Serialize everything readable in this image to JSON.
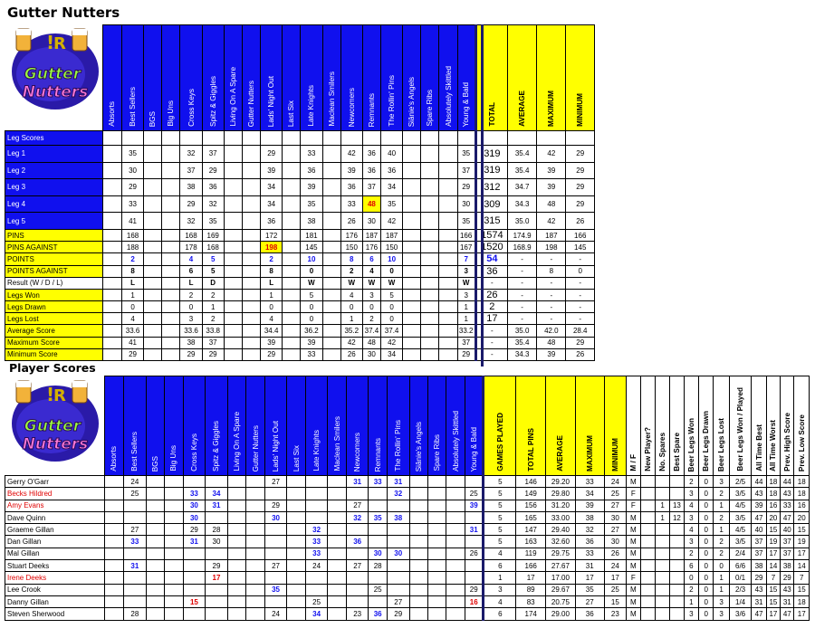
{
  "title": "Gutter Nutters",
  "subtitle": "Player Scores",
  "logo_text": "Gutter Nutters",
  "teams": [
    "Absorts",
    "Best Sellers",
    "BGS",
    "Big Uns",
    "Cross Keys",
    "Spitz & Giggles",
    "Living On A Spare",
    "Gutter Nutters",
    "Lads' Night Out",
    "Last Six",
    "Late Knights",
    "Maclean Smilers",
    "Newcomers",
    "Remnants",
    "The Rollin' Pins",
    "Siânie's Angels",
    "Spare Ribs",
    "Absolutely Skittled",
    "Young & Bald"
  ],
  "summary_headers": [
    "TOTAL",
    "AVERAGE",
    "MAXIMUM",
    "MINIMUM"
  ],
  "leg_rows": [
    {
      "label": "Leg Scores",
      "style": "blue",
      "cells": [
        "",
        "",
        "",
        "",
        "",
        "",
        "",
        "",
        "",
        "",
        "",
        "",
        "",
        "",
        "",
        "",
        "",
        "",
        ""
      ],
      "summary": [
        "",
        "",
        "",
        ""
      ]
    },
    {
      "label": "Leg 1",
      "style": "blue",
      "cells": [
        "",
        "35",
        "",
        "",
        "32",
        "37",
        "",
        "",
        "29",
        "",
        "33",
        "",
        "42",
        "36",
        "40",
        "",
        "",
        "",
        "35"
      ],
      "summary": [
        "319",
        "35.4",
        "42",
        "29"
      ]
    },
    {
      "label": "Leg 2",
      "style": "blue",
      "cells": [
        "",
        "30",
        "",
        "",
        "37",
        "29",
        "",
        "",
        "39",
        "",
        "36",
        "",
        "39",
        "36",
        "36",
        "",
        "",
        "",
        "37"
      ],
      "summary": [
        "319",
        "35.4",
        "39",
        "29"
      ]
    },
    {
      "label": "Leg 3",
      "style": "blue",
      "cells": [
        "",
        "29",
        "",
        "",
        "38",
        "36",
        "",
        "",
        "34",
        "",
        "39",
        "",
        "36",
        "37",
        "34",
        "",
        "",
        "",
        "29"
      ],
      "summary": [
        "312",
        "34.7",
        "39",
        "29"
      ]
    },
    {
      "label": "Leg 4",
      "style": "blue",
      "cells": [
        "",
        "33",
        "",
        "",
        "29",
        "32",
        "",
        "",
        "34",
        "",
        "35",
        "",
        "33",
        "48",
        "35",
        "",
        "",
        "",
        "30"
      ],
      "summary": [
        "309",
        "34.3",
        "48",
        "29"
      ]
    },
    {
      "label": "Leg 5",
      "style": "blue",
      "cells": [
        "",
        "41",
        "",
        "",
        "32",
        "35",
        "",
        "",
        "36",
        "",
        "38",
        "",
        "26",
        "30",
        "42",
        "",
        "",
        "",
        "35"
      ],
      "summary": [
        "315",
        "35.0",
        "42",
        "26"
      ]
    },
    {
      "label": "PINS",
      "style": "yel",
      "cells": [
        "",
        "168",
        "",
        "",
        "168",
        "169",
        "",
        "",
        "172",
        "",
        "181",
        "",
        "176",
        "187",
        "187",
        "",
        "",
        "",
        "166"
      ],
      "summary": [
        "1574",
        "174.9",
        "187",
        "166"
      ]
    },
    {
      "label": "PINS AGAINST",
      "style": "yel",
      "cells": [
        "",
        "188",
        "",
        "",
        "178",
        "168",
        "",
        "",
        "198",
        "",
        "145",
        "",
        "150",
        "176",
        "150",
        "",
        "",
        "",
        "167"
      ],
      "summary": [
        "1520",
        "168.9",
        "198",
        "145"
      ]
    },
    {
      "label": "POINTS",
      "style": "yel",
      "cls": "cb",
      "cells": [
        "",
        "2",
        "",
        "",
        "4",
        "5",
        "",
        "",
        "2",
        "",
        "10",
        "",
        "8",
        "6",
        "10",
        "",
        "",
        "",
        "7"
      ],
      "summary": [
        "54",
        "-",
        "-",
        "-"
      ]
    },
    {
      "label": "POINTS AGAINST",
      "style": "yel",
      "cls": "ck",
      "cells": [
        "",
        "8",
        "",
        "",
        "6",
        "5",
        "",
        "",
        "8",
        "",
        "0",
        "",
        "2",
        "4",
        "0",
        "",
        "",
        "",
        "3"
      ],
      "summary": [
        "36",
        "-",
        "8",
        "0"
      ]
    },
    {
      "label": "Result (W / D / L)",
      "style": "white",
      "cls": "ck",
      "cells": [
        "",
        "L",
        "",
        "",
        "L",
        "D",
        "",
        "",
        "L",
        "",
        "W",
        "",
        "W",
        "W",
        "W",
        "",
        "",
        "",
        "W"
      ],
      "summary": [
        "-",
        "-",
        "-",
        "-"
      ]
    },
    {
      "label": "Legs Won",
      "style": "yel",
      "cells": [
        "",
        "1",
        "",
        "",
        "2",
        "2",
        "",
        "",
        "1",
        "",
        "5",
        "",
        "4",
        "3",
        "5",
        "",
        "",
        "",
        "3"
      ],
      "summary": [
        "26",
        "-",
        "-",
        "-"
      ]
    },
    {
      "label": "Legs Drawn",
      "style": "yel",
      "cells": [
        "",
        "0",
        "",
        "",
        "0",
        "1",
        "",
        "",
        "0",
        "",
        "0",
        "",
        "0",
        "0",
        "0",
        "",
        "",
        "",
        "1"
      ],
      "summary": [
        "2",
        "-",
        "-",
        "-"
      ]
    },
    {
      "label": "Legs Lost",
      "style": "yel",
      "cells": [
        "",
        "4",
        "",
        "",
        "3",
        "2",
        "",
        "",
        "4",
        "",
        "0",
        "",
        "1",
        "2",
        "0",
        "",
        "",
        "",
        "1"
      ],
      "summary": [
        "17",
        "-",
        "-",
        "-"
      ]
    },
    {
      "label": "Average Score",
      "style": "yel",
      "cells": [
        "",
        "33.6",
        "",
        "",
        "33.6",
        "33.8",
        "",
        "",
        "34.4",
        "",
        "36.2",
        "",
        "35.2",
        "37.4",
        "37.4",
        "",
        "",
        "",
        "33.2"
      ],
      "summary": [
        "-",
        "35.0",
        "42.0",
        "28.4"
      ]
    },
    {
      "label": "Maximum Score",
      "style": "yel",
      "cells": [
        "",
        "41",
        "",
        "",
        "38",
        "37",
        "",
        "",
        "39",
        "",
        "39",
        "",
        "42",
        "48",
        "42",
        "",
        "",
        "",
        "37"
      ],
      "summary": [
        "-",
        "35.4",
        "48",
        "29"
      ]
    },
    {
      "label": "Minimum Score",
      "style": "yel",
      "cells": [
        "",
        "29",
        "",
        "",
        "29",
        "29",
        "",
        "",
        "29",
        "",
        "33",
        "",
        "26",
        "30",
        "34",
        "",
        "",
        "",
        "29"
      ],
      "summary": [
        "-",
        "34.3",
        "39",
        "26"
      ]
    }
  ],
  "player_headers": [
    "GAMES PLAYED",
    "TOTAL PINS",
    "AVERAGE",
    "MAXIMUM",
    "MINIMUM"
  ],
  "extra_headers": [
    "M / F",
    "New Player?",
    "No. Spares",
    "Best Spare",
    "Beer Legs Won",
    "Beer Legs Drawn",
    "Beer Legs Lost",
    "Beer Legs Won / Played",
    "All Time Best",
    "All Time Worst",
    "Prev. High Score",
    "Prev. Low Score"
  ],
  "players": [
    {
      "name": "Gerry O'Garr",
      "red": false,
      "cells": [
        "",
        "24",
        "",
        "",
        "",
        "",
        "",
        "",
        "27",
        "",
        "",
        "",
        "31",
        "33",
        "31",
        "",
        "",
        "",
        ""
      ],
      "summary": [
        "5",
        "146",
        "29.20",
        "33",
        "24"
      ],
      "extra": [
        "M",
        "",
        "",
        "",
        "2",
        "0",
        "3",
        "2/5",
        "44",
        "18",
        "44",
        "18"
      ]
    },
    {
      "name": "Becks Hildred",
      "red": true,
      "cells": [
        "",
        "25",
        "",
        "",
        "33",
        "34",
        "",
        "",
        "",
        "",
        "",
        "",
        "",
        "",
        "32",
        "",
        "",
        "",
        "25"
      ],
      "summary": [
        "5",
        "149",
        "29.80",
        "34",
        "25"
      ],
      "extra": [
        "F",
        "",
        "",
        "",
        "3",
        "0",
        "2",
        "3/5",
        "43",
        "18",
        "43",
        "18"
      ]
    },
    {
      "name": "Amy Evans",
      "red": true,
      "cells": [
        "",
        "",
        "",
        "",
        "30",
        "31",
        "",
        "",
        "29",
        "",
        "",
        "",
        "27",
        "",
        "",
        "",
        "",
        "",
        "39"
      ],
      "summary": [
        "5",
        "156",
        "31.20",
        "39",
        "27"
      ],
      "extra": [
        "F",
        "",
        "1",
        "13",
        "4",
        "0",
        "1",
        "4/5",
        "39",
        "16",
        "33",
        "16"
      ]
    },
    {
      "name": "Dave Quinn",
      "red": false,
      "cells": [
        "",
        "",
        "",
        "",
        "30",
        "",
        "",
        "",
        "30",
        "",
        "",
        "",
        "32",
        "35",
        "38",
        "",
        "",
        "",
        ""
      ],
      "summary": [
        "5",
        "165",
        "33.00",
        "38",
        "30"
      ],
      "extra": [
        "M",
        "",
        "1",
        "12",
        "3",
        "0",
        "2",
        "3/5",
        "47",
        "20",
        "47",
        "20"
      ]
    },
    {
      "name": "Graeme Gillan",
      "red": false,
      "cells": [
        "",
        "27",
        "",
        "",
        "29",
        "28",
        "",
        "",
        "",
        "",
        "32",
        "",
        "",
        "",
        "",
        "",
        "",
        "",
        "31"
      ],
      "summary": [
        "5",
        "147",
        "29.40",
        "32",
        "27"
      ],
      "extra": [
        "M",
        "",
        "",
        "",
        "4",
        "0",
        "1",
        "4/5",
        "40",
        "15",
        "40",
        "15"
      ]
    },
    {
      "name": "Dan Gillan",
      "red": false,
      "cells": [
        "",
        "33",
        "",
        "",
        "31",
        "30",
        "",
        "",
        "",
        "",
        "33",
        "",
        "36",
        "",
        "",
        "",
        "",
        "",
        ""
      ],
      "summary": [
        "5",
        "163",
        "32.60",
        "36",
        "30"
      ],
      "extra": [
        "M",
        "",
        "",
        "",
        "3",
        "0",
        "2",
        "3/5",
        "37",
        "19",
        "37",
        "19"
      ]
    },
    {
      "name": "Mal Gillan",
      "red": false,
      "cells": [
        "",
        "",
        "",
        "",
        "",
        "",
        "",
        "",
        "",
        "",
        "33",
        "",
        "",
        "30",
        "30",
        "",
        "",
        "",
        "26"
      ],
      "summary": [
        "4",
        "119",
        "29.75",
        "33",
        "26"
      ],
      "extra": [
        "M",
        "",
        "",
        "",
        "2",
        "0",
        "2",
        "2/4",
        "37",
        "17",
        "37",
        "17"
      ]
    },
    {
      "name": "Stuart Deeks",
      "red": false,
      "cells": [
        "",
        "31",
        "",
        "",
        "",
        "29",
        "",
        "",
        "27",
        "",
        "24",
        "",
        "27",
        "28",
        "",
        "",
        "",
        "",
        ""
      ],
      "summary": [
        "6",
        "166",
        "27.67",
        "31",
        "24"
      ],
      "extra": [
        "M",
        "",
        "",
        "",
        "6",
        "0",
        "0",
        "6/6",
        "38",
        "14",
        "38",
        "14"
      ]
    },
    {
      "name": "Irene Deeks",
      "red": true,
      "cells": [
        "",
        "",
        "",
        "",
        "",
        "17",
        "",
        "",
        "",
        "",
        "",
        "",
        "",
        "",
        "",
        "",
        "",
        "",
        ""
      ],
      "summary": [
        "1",
        "17",
        "17.00",
        "17",
        "17"
      ],
      "extra": [
        "F",
        "",
        "",
        "",
        "0",
        "0",
        "1",
        "0/1",
        "29",
        "7",
        "29",
        "7"
      ]
    },
    {
      "name": "Lee Crook",
      "red": false,
      "cells": [
        "",
        "",
        "",
        "",
        "",
        "",
        "",
        "",
        "35",
        "",
        "",
        "",
        "",
        "25",
        "",
        "",
        "",
        "",
        "29"
      ],
      "summary": [
        "3",
        "89",
        "29.67",
        "35",
        "25"
      ],
      "extra": [
        "M",
        "",
        "",
        "",
        "2",
        "0",
        "1",
        "2/3",
        "43",
        "15",
        "43",
        "15"
      ]
    },
    {
      "name": "Danny Gillan",
      "red": false,
      "cells": [
        "",
        "",
        "",
        "",
        "15",
        "",
        "",
        "",
        "",
        "",
        "25",
        "",
        "",
        "",
        "27",
        "",
        "",
        "",
        "16"
      ],
      "summary": [
        "4",
        "83",
        "20.75",
        "27",
        "15"
      ],
      "extra": [
        "M",
        "",
        "",
        "",
        "1",
        "0",
        "3",
        "1/4",
        "31",
        "15",
        "31",
        "18"
      ]
    },
    {
      "name": "Steven Sherwood",
      "red": false,
      "cells": [
        "",
        "28",
        "",
        "",
        "",
        "",
        "",
        "",
        "24",
        "",
        "34",
        "",
        "23",
        "36",
        "29",
        "",
        "",
        "",
        ""
      ],
      "summary": [
        "6",
        "174",
        "29.00",
        "36",
        "23"
      ],
      "extra": [
        "M",
        "",
        "",
        "",
        "3",
        "0",
        "3",
        "3/6",
        "47",
        "17",
        "47",
        "17"
      ]
    }
  ],
  "colors": {
    "header_blue": "#1010ee",
    "summary_yellow": "#ffff00",
    "bold_blue": "#1010ee",
    "bold_red": "#e00000"
  }
}
